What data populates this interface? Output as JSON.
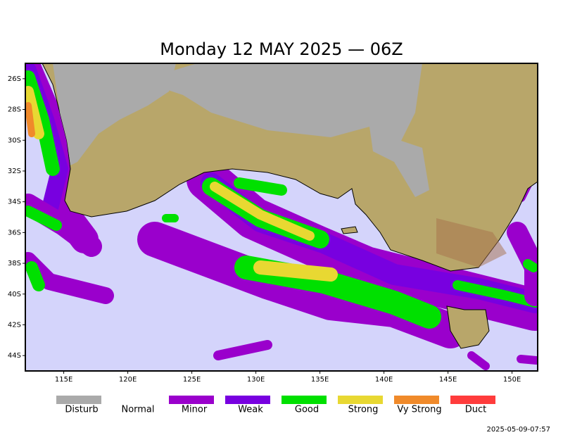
{
  "title": "Monday 12 MAY 2025 — 06Z",
  "map": {
    "lon_range": [
      112,
      152
    ],
    "lat_range": [
      -25,
      -45
    ],
    "lon_ticks": [
      {
        "value": 115,
        "label": "115E"
      },
      {
        "value": 120,
        "label": "120E"
      },
      {
        "value": 125,
        "label": "125E"
      },
      {
        "value": 130,
        "label": "130E"
      },
      {
        "value": 135,
        "label": "135E"
      },
      {
        "value": 140,
        "label": "140E"
      },
      {
        "value": 145,
        "label": "145E"
      },
      {
        "value": 150,
        "label": "150E"
      }
    ],
    "lat_ticks": [
      {
        "value": -26,
        "label": "26S"
      },
      {
        "value": -28,
        "label": "28S"
      },
      {
        "value": -30,
        "label": "30S"
      },
      {
        "value": -32,
        "label": "32S"
      },
      {
        "value": -34,
        "label": "34S"
      },
      {
        "value": -36,
        "label": "36S"
      },
      {
        "value": -38,
        "label": "38S"
      },
      {
        "value": -40,
        "label": "40S"
      },
      {
        "value": -42,
        "label": "42S"
      },
      {
        "value": -44,
        "label": "44S"
      }
    ]
  },
  "legend": [
    {
      "name": "Disturb",
      "color": "#aaaaaa"
    },
    {
      "name": "Normal",
      "color": "#ffffff"
    },
    {
      "name": "Minor",
      "color": "#9a00cc"
    },
    {
      "name": "Weak",
      "color": "#7800e0"
    },
    {
      "name": "Good",
      "color": "#00e000"
    },
    {
      "name": "Strong",
      "color": "#e8d832"
    },
    {
      "name": "Vy Strong",
      "color": "#f08a2a"
    },
    {
      "name": "Duct",
      "color": "#ff3c3c"
    }
  ],
  "timestamp": "2025-05-09-07:57"
}
